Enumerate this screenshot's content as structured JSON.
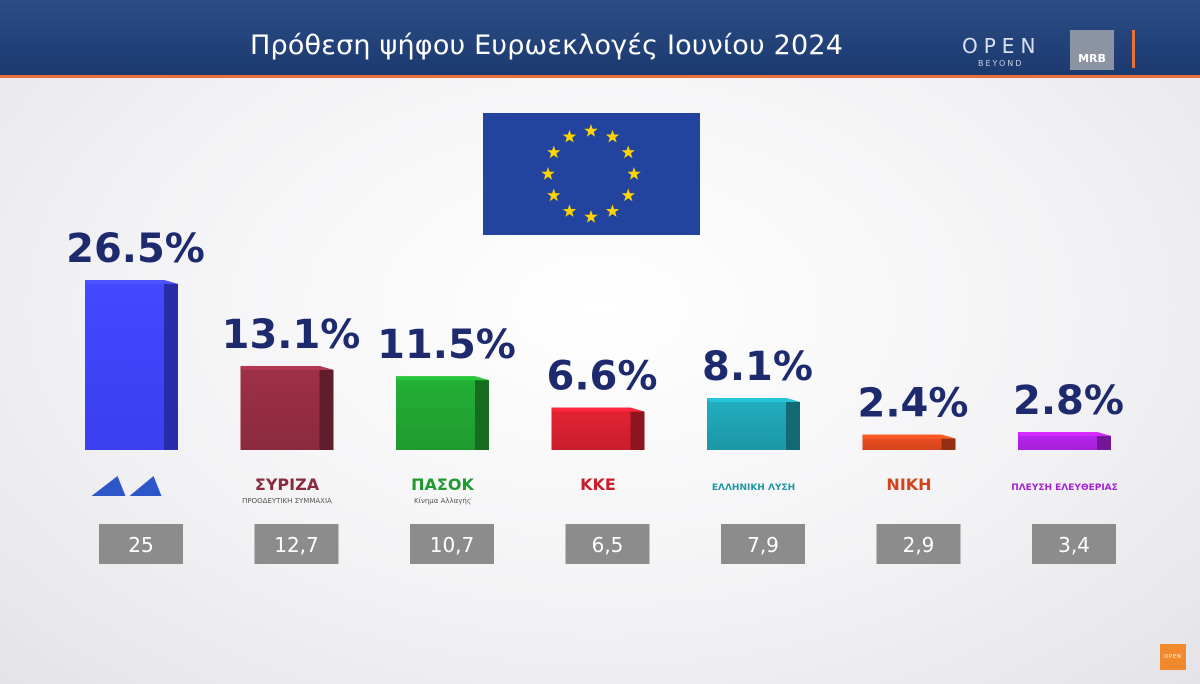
{
  "header": {
    "title": "Πρόθεση ψήφου Ευρωεκλογές Ιουνίου 2024",
    "brand_open": "OPEN",
    "brand_beyond": "BEYOND",
    "brand_mrb": "MRB",
    "corner_logo": "OPEN"
  },
  "chart_data": {
    "type": "bar",
    "categories": [
      "ΝΔ",
      "ΣΥΡΙΖΑ",
      "ΠΑΣΟΚ",
      "ΚΚΕ",
      "ΕΛΛΗΝΙΚΗ ΛΥΣΗ",
      "ΝΙΚΗ",
      "ΠΛΕΥΣΗ ΕΛΕΥΘΕΡΙΑΣ"
    ],
    "values": [
      26.5,
      13.1,
      11.5,
      6.6,
      8.1,
      2.4,
      2.8
    ],
    "value_labels": [
      "26.5%",
      "13.1%",
      "11.5%",
      "6.6%",
      "8.1%",
      "2.4%",
      "2.8%"
    ],
    "previous_values": [
      "25",
      "12,7",
      "10,7",
      "6,5",
      "7,9",
      "2,9",
      "3,4"
    ],
    "logo_texts": [
      "",
      "ΣΥΡΙΖΑ",
      "ΠΑΣΟΚ",
      "ΚΚΕ",
      "ΕΛΛΗΝΙΚΗ ΛΥΣΗ",
      "ΝΙΚΗ",
      "ΠΛΕΥΣΗ ΕΛΕΥΘΕΡΙΑΣ"
    ],
    "logo_subtexts": [
      "",
      "ΠΡΟΟΔΕΥΤΙΚΗ ΣΥΜΜΑΧΙΑ",
      "Κίνημα Αλλαγής",
      "",
      "",
      "",
      ""
    ],
    "colors": [
      "#3b3ff0",
      "#8a2a3e",
      "#1f9a2f",
      "#c81e2d",
      "#1d97a6",
      "#d2451c",
      "#a421d6"
    ],
    "title": "Πρόθεση ψήφου Ευρωεκλογές Ιουνίου 2024",
    "xlabel": "",
    "ylabel": "",
    "grid": false
  }
}
